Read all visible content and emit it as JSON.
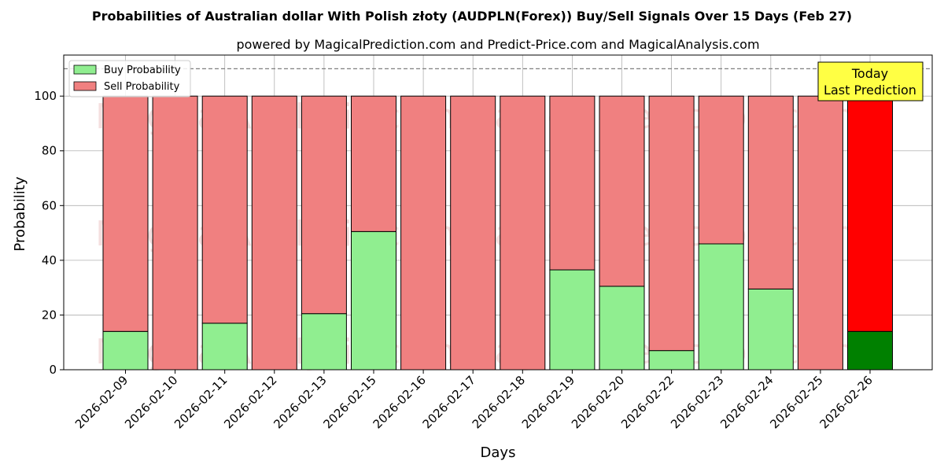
{
  "chart_data": {
    "type": "bar",
    "stacked": true,
    "title": "Probabilities of Australian dollar With Polish złoty (AUDPLN(Forex)) Buy/Sell Signals Over 15 Days (Feb 27)",
    "subtitle": "powered by MagicalPrediction.com and Predict-Price.com and MagicalAnalysis.com",
    "xlabel": "Days",
    "ylabel": "Probability",
    "ylim": [
      0,
      115
    ],
    "yticks": [
      0,
      20,
      40,
      60,
      80,
      100
    ],
    "reference_line": 110,
    "grid": true,
    "legend_position": "top-left",
    "categories": [
      "2026-02-09",
      "2026-02-10",
      "2026-02-11",
      "2026-02-12",
      "2026-02-13",
      "2026-02-15",
      "2026-02-16",
      "2026-02-17",
      "2026-02-18",
      "2026-02-19",
      "2026-02-20",
      "2026-02-22",
      "2026-02-23",
      "2026-02-24",
      "2026-02-25",
      "2026-02-26"
    ],
    "series": [
      {
        "name": "Buy Probability",
        "color": "#90ee90",
        "highlight_color": "#008000",
        "values": [
          14,
          0,
          17,
          0,
          20.5,
          50.5,
          0,
          0,
          0,
          36.5,
          30.5,
          7,
          46,
          29.5,
          0,
          14
        ]
      },
      {
        "name": "Sell Probability",
        "color": "#f08080",
        "highlight_color": "#ff0000",
        "values": [
          86,
          100,
          83,
          100,
          79.5,
          49.5,
          100,
          100,
          100,
          63.5,
          69.5,
          93,
          54,
          70.5,
          100,
          86
        ]
      }
    ],
    "highlight_index": 15,
    "annotation": {
      "lines": [
        "Today",
        "Last Prediction"
      ],
      "background": "#ffff44"
    },
    "watermarks": [
      "MagicalAnalysis.com",
      "MagicalPrediction.com"
    ]
  }
}
